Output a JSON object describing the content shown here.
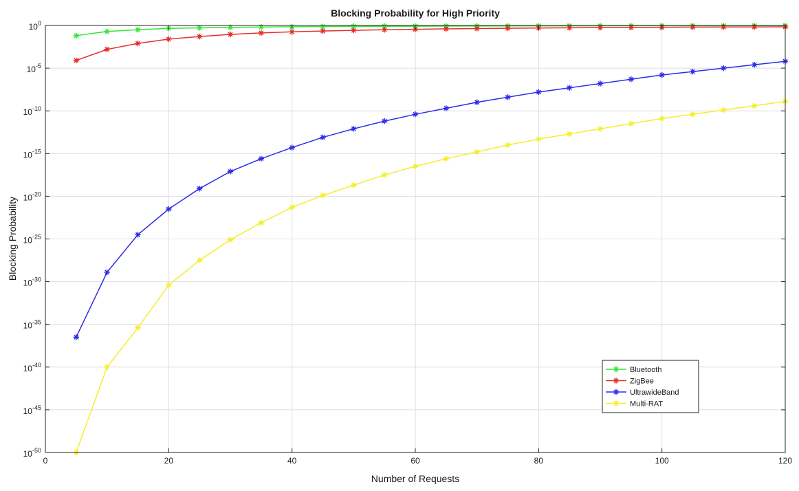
{
  "chart_data": {
    "type": "line",
    "title": "Blocking Probability for High Priority",
    "xlabel": "Number of Requests",
    "ylabel": "Blocking Probability",
    "xlim": [
      0,
      120
    ],
    "ylim_log10": [
      -50,
      0
    ],
    "yscale": "log",
    "grid": true,
    "legend_position": "bottom-right",
    "x_ticks": [
      0,
      20,
      40,
      60,
      80,
      100,
      120
    ],
    "x_tick_labels": [
      "0",
      "20",
      "40",
      "60",
      "80",
      "100",
      "120"
    ],
    "y_ticks_log10": [
      0,
      -5,
      -10,
      -15,
      -20,
      -25,
      -30,
      -35,
      -40,
      -45,
      -50
    ],
    "y_tick_labels": [
      {
        "base": "10",
        "exp": "0"
      },
      {
        "base": "10",
        "exp": "-5"
      },
      {
        "base": "10",
        "exp": "-10"
      },
      {
        "base": "10",
        "exp": "-15"
      },
      {
        "base": "10",
        "exp": "-20"
      },
      {
        "base": "10",
        "exp": "-25"
      },
      {
        "base": "10",
        "exp": "-30"
      },
      {
        "base": "10",
        "exp": "-35"
      },
      {
        "base": "10",
        "exp": "-40"
      },
      {
        "base": "10",
        "exp": "-45"
      },
      {
        "base": "10",
        "exp": "-50"
      }
    ],
    "x": [
      5,
      10,
      15,
      20,
      25,
      30,
      35,
      40,
      45,
      50,
      55,
      60,
      65,
      70,
      75,
      80,
      85,
      90,
      95,
      100,
      105,
      110,
      115,
      120
    ],
    "series": [
      {
        "name": "Bluetooth",
        "color": "#33e533",
        "marker": "asterisk",
        "values_log10": [
          -1.2,
          -0.7,
          -0.5,
          -0.35,
          -0.28,
          -0.22,
          -0.18,
          -0.15,
          -0.13,
          -0.11,
          -0.1,
          -0.09,
          -0.08,
          -0.07,
          -0.06,
          -0.05,
          -0.05,
          -0.04,
          -0.04,
          -0.03,
          -0.03,
          -0.03,
          -0.02,
          -0.02
        ]
      },
      {
        "name": "ZigBee",
        "color": "#e82b2b",
        "marker": "asterisk",
        "values_log10": [
          -4.1,
          -2.8,
          -2.1,
          -1.6,
          -1.3,
          -1.05,
          -0.88,
          -0.75,
          -0.65,
          -0.57,
          -0.5,
          -0.45,
          -0.4,
          -0.36,
          -0.33,
          -0.3,
          -0.27,
          -0.25,
          -0.23,
          -0.21,
          -0.19,
          -0.18,
          -0.17,
          -0.16
        ]
      },
      {
        "name": "UltrawideBand",
        "color": "#2b2bea",
        "marker": "asterisk",
        "values_log10": [
          -36.5,
          -28.9,
          -24.5,
          -21.5,
          -19.1,
          -17.1,
          -15.6,
          -14.3,
          -13.1,
          -12.1,
          -11.2,
          -10.4,
          -9.7,
          -9.0,
          -8.4,
          -7.8,
          -7.3,
          -6.8,
          -6.3,
          -5.8,
          -5.4,
          -5.0,
          -4.6,
          -4.2
        ]
      },
      {
        "name": "Multi-RAT",
        "color": "#f5ee2b",
        "marker": "asterisk",
        "values_log10": [
          -50.0,
          -40.0,
          -35.4,
          -30.4,
          -27.5,
          -25.1,
          -23.1,
          -21.3,
          -19.9,
          -18.7,
          -17.5,
          -16.5,
          -15.6,
          -14.8,
          -14.0,
          -13.3,
          -12.7,
          -12.1,
          -11.5,
          -10.9,
          -10.4,
          -9.9,
          -9.4,
          -8.9
        ]
      }
    ]
  }
}
